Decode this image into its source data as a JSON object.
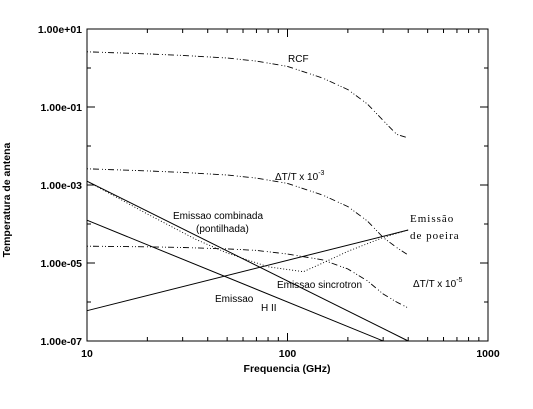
{
  "chart_data": {
    "type": "line",
    "xlabel": "Frequencia (GHz)",
    "ylabel": "Temperatura de antena",
    "x_scale": "log",
    "y_scale": "log",
    "xlim": [
      10,
      1000
    ],
    "ylim": [
      1e-07,
      10
    ],
    "x_ticks": [
      "10",
      "100",
      "1000"
    ],
    "y_ticks": [
      "1.00e-07",
      "1.00e-05",
      "1.00e-03",
      "1.00e-01",
      "1.00e+01"
    ],
    "grid": false,
    "annotations": {
      "rcf": "RCF",
      "dt3_main": "ΔT/T x 10",
      "dt3_exp": "-3",
      "combinada_1": "Emissao combinada",
      "combinada_2": "(pontilhada)",
      "poeira_1": "Emissão",
      "poeira_2": "de poeira",
      "sincrotron": "Emissao sincrotron",
      "dt5_main": "ΔT/T x 10",
      "dt5_exp": "-5",
      "hii_1": "Emissao",
      "hii_2": "H II"
    },
    "series": [
      {
        "style": "dotted-dashed",
        "x": [
          10,
          20,
          30,
          50,
          70,
          100,
          150,
          200,
          250,
          300,
          350,
          400
        ],
        "y": [
          2.6,
          2.3,
          2.1,
          1.8,
          1.5,
          1.1,
          0.55,
          0.28,
          0.12,
          0.045,
          0.02,
          0.016
        ]
      },
      {
        "style": "dotted-dashed",
        "x": [
          10,
          20,
          30,
          50,
          70,
          100,
          150,
          200,
          250,
          300,
          350,
          400
        ],
        "y": [
          0.0026,
          0.0023,
          0.0021,
          0.0018,
          0.0015,
          0.0011,
          0.00055,
          0.00028,
          0.00012,
          4.5e-05,
          2.5e-05,
          1.6e-05
        ]
      },
      {
        "style": "dotted-dashed",
        "x": [
          10,
          20,
          30,
          50,
          70,
          100,
          150,
          200,
          250,
          300,
          350,
          400
        ],
        "y": [
          2.7e-05,
          2.6e-05,
          2.5e-05,
          2.3e-05,
          2.1e-05,
          1.7e-05,
          1.2e-05,
          7e-06,
          3.5e-06,
          1.6e-06,
          1e-06,
          7e-07
        ]
      },
      {
        "style": "solid",
        "x": [
          10,
          400
        ],
        "y": [
          0.00125,
          1e-07
        ]
      },
      {
        "style": "solid",
        "x": [
          10,
          300
        ],
        "y": [
          0.000125,
          1e-07
        ]
      },
      {
        "style": "solid",
        "x": [
          10,
          400
        ],
        "y": [
          6e-07,
          7e-05
        ]
      },
      {
        "style": "dotted",
        "x": [
          10,
          20,
          35,
          50,
          80,
          120,
          150,
          200,
          300,
          400
        ],
        "y": [
          0.00125,
          0.00018,
          4e-05,
          1.8e-05,
          8e-06,
          6e-06,
          1e-05,
          2e-05,
          4.5e-05,
          7e-05
        ]
      }
    ]
  }
}
